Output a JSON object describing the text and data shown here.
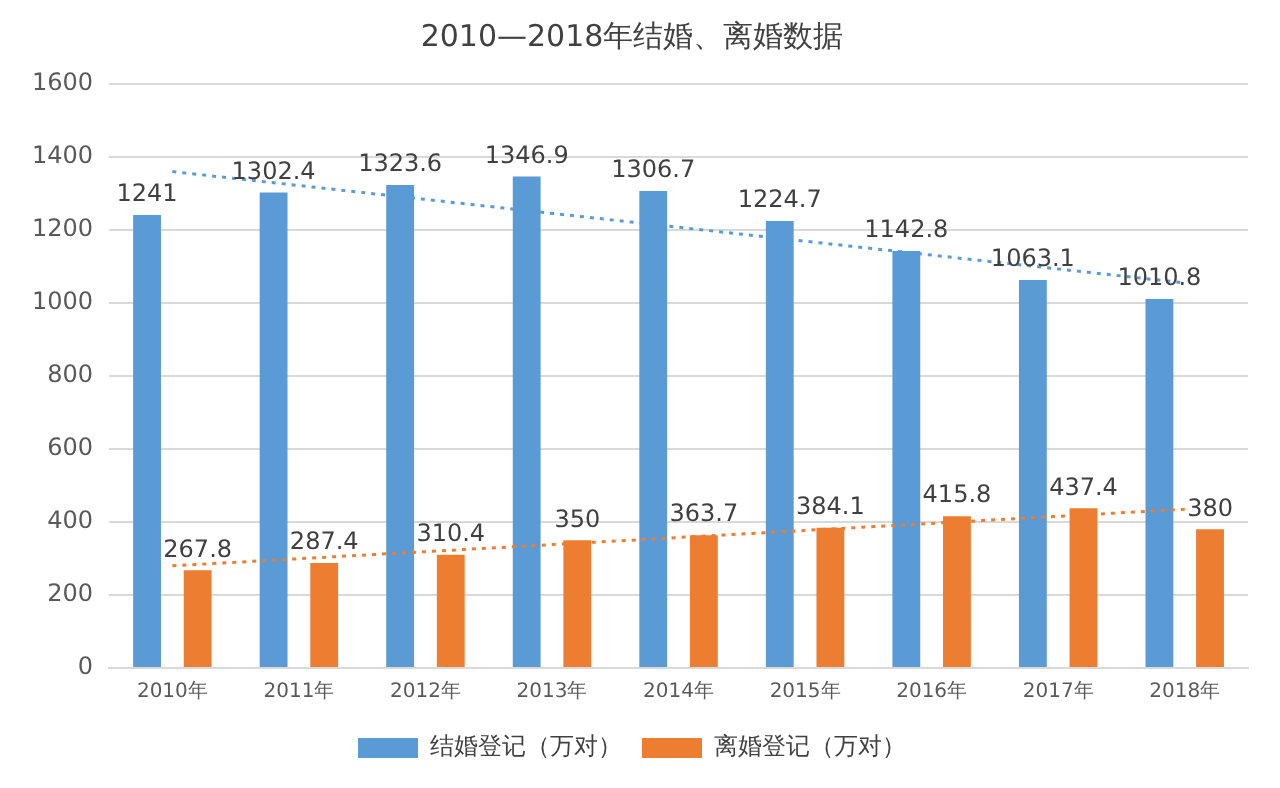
{
  "chart_data": {
    "type": "bar",
    "title": "2010—2018年结婚、离婚数据",
    "categories": [
      "2010年",
      "2011年",
      "2012年",
      "2013年",
      "2014年",
      "2015年",
      "2016年",
      "2017年",
      "2018年"
    ],
    "series": [
      {
        "name": "结婚登记（万对）",
        "color": "#5b9bd5",
        "values": [
          1241,
          1302.4,
          1323.6,
          1346.9,
          1306.7,
          1224.7,
          1142.8,
          1063.1,
          1010.8
        ],
        "value_labels": [
          "1241",
          "1302.4",
          "1323.6",
          "1346.9",
          "1306.7",
          "1224.7",
          "1142.8",
          "1063.1",
          "1010.8"
        ]
      },
      {
        "name": "离婚登记（万对）",
        "color": "#ed7d31",
        "values": [
          267.8,
          287.4,
          310.4,
          350,
          363.7,
          384.1,
          415.8,
          437.4,
          380
        ],
        "value_labels": [
          "267.8",
          "287.4",
          "310.4",
          "350",
          "363.7",
          "384.1",
          "415.8",
          "437.4",
          "380"
        ]
      },
      {
        "type": "line",
        "color": "#5b9bd5",
        "line_style": "dotted",
        "x": [
          "2010年",
          "2018年"
        ],
        "values": [
          1360,
          1055
        ]
      },
      {
        "type": "line",
        "color": "#ed7d31",
        "line_style": "dotted",
        "x": [
          "2010年",
          "2018年"
        ],
        "values": [
          280,
          435
        ]
      }
    ],
    "ylim": [
      0,
      1600
    ],
    "yticks": [
      0,
      200,
      400,
      600,
      800,
      1000,
      1200,
      1400,
      1600
    ],
    "grid": "y",
    "legend": "bottom"
  }
}
